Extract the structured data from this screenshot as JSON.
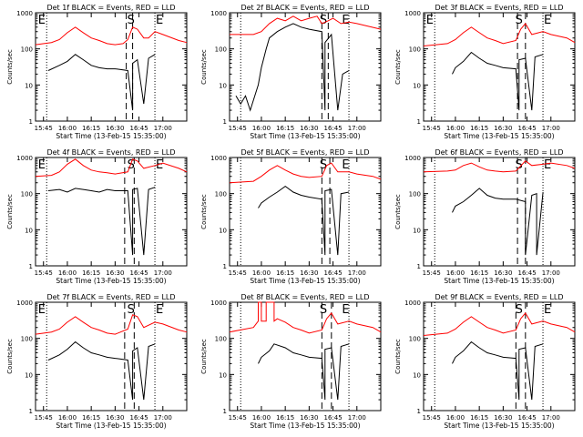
{
  "figure": {
    "shared": {
      "xlabel": "Start Time (13-Feb-15 15:35:00)",
      "ylabel": "Counts/sec",
      "x_tick_labels": [
        "15:45",
        "16:00",
        "16:15",
        "16:30",
        "16:45",
        "17:00"
      ],
      "y_tick_labels": [
        "1",
        "10",
        "100",
        "1000"
      ]
    },
    "colors": {
      "events": "#000000",
      "lld": "#ff0000"
    }
  },
  "chart_data": [
    {
      "title": "Det 1f BLACK = Events, RED = LLD",
      "type": "line",
      "xlim": [
        "15:40",
        "17:15"
      ],
      "ylim": [
        1,
        1000
      ],
      "yscale": "log",
      "marker_labels": [
        "E",
        "S",
        "E"
      ],
      "series": [
        {
          "name": "Events",
          "color": "#000000",
          "x": [
            "15:48",
            "15:55",
            "16:00",
            "16:05",
            "16:10",
            "16:15",
            "16:20",
            "16:25",
            "16:30",
            "16:38",
            "16:41",
            "16:41",
            "16:44",
            "16:48",
            "16:51",
            "16:55"
          ],
          "values": [
            25,
            35,
            45,
            70,
            50,
            35,
            30,
            28,
            28,
            25,
            2,
            40,
            50,
            3,
            55,
            70
          ]
        },
        {
          "name": "LLD",
          "color": "#ff0000",
          "x": [
            "15:40",
            "15:50",
            "15:55",
            "16:00",
            "16:05",
            "16:10",
            "16:15",
            "16:20",
            "16:25",
            "16:30",
            "16:35",
            "16:38",
            "16:41",
            "16:44",
            "16:48",
            "16:51",
            "16:55",
            "17:00",
            "17:10",
            "17:15"
          ],
          "values": [
            130,
            150,
            180,
            280,
            400,
            280,
            200,
            170,
            140,
            130,
            140,
            180,
            400,
            350,
            200,
            200,
            300,
            250,
            170,
            150
          ]
        }
      ]
    },
    {
      "title": "Det 2f BLACK = Events, RED = LLD",
      "type": "line",
      "xlim": [
        "15:40",
        "17:15"
      ],
      "ylim": [
        1,
        1000
      ],
      "yscale": "log",
      "marker_labels": [
        "S",
        "E"
      ],
      "series": [
        {
          "name": "Events",
          "color": "#000000",
          "x": [
            "15:44",
            "15:47",
            "15:50",
            "15:53",
            "15:58",
            "16:00",
            "16:03",
            "16:05",
            "16:10",
            "16:15",
            "16:20",
            "16:25",
            "16:30",
            "16:38",
            "16:40",
            "16:40",
            "16:44",
            "16:48",
            "16:51",
            "16:55"
          ],
          "values": [
            5,
            3,
            5,
            2,
            10,
            30,
            100,
            200,
            300,
            400,
            500,
            400,
            350,
            300,
            2,
            150,
            250,
            2,
            20,
            25
          ]
        },
        {
          "name": "LLD",
          "color": "#ff0000",
          "x": [
            "15:40",
            "15:55",
            "16:00",
            "16:05",
            "16:10",
            "16:15",
            "16:20",
            "16:25",
            "16:30",
            "16:35",
            "16:38",
            "16:42",
            "16:45",
            "16:50",
            "16:55",
            "17:00",
            "17:15"
          ],
          "values": [
            250,
            250,
            300,
            500,
            700,
            600,
            800,
            600,
            700,
            800,
            500,
            600,
            700,
            500,
            550,
            500,
            350
          ]
        }
      ]
    },
    {
      "title": "Det 3f BLACK = Events, RED = LLD",
      "type": "line",
      "xlim": [
        "15:40",
        "17:15"
      ],
      "ylim": [
        1,
        1000
      ],
      "yscale": "log",
      "marker_labels": [
        "E",
        "S",
        "E"
      ],
      "series": [
        {
          "name": "Events",
          "color": "#000000",
          "x": [
            "15:58",
            "16:00",
            "16:05",
            "16:10",
            "16:15",
            "16:20",
            "16:25",
            "16:30",
            "16:38",
            "16:40",
            "16:40",
            "16:44",
            "16:48",
            "16:50",
            "16:55"
          ],
          "values": [
            20,
            30,
            45,
            80,
            55,
            40,
            35,
            30,
            28,
            2,
            50,
            55,
            2,
            60,
            70
          ]
        },
        {
          "name": "LLD",
          "color": "#ff0000",
          "x": [
            "15:40",
            "15:55",
            "16:00",
            "16:05",
            "16:10",
            "16:15",
            "16:20",
            "16:25",
            "16:30",
            "16:38",
            "16:41",
            "16:44",
            "16:48",
            "16:55",
            "17:00",
            "17:10",
            "17:15"
          ],
          "values": [
            120,
            140,
            180,
            280,
            400,
            280,
            200,
            170,
            140,
            170,
            350,
            500,
            250,
            300,
            250,
            200,
            150
          ]
        }
      ]
    },
    {
      "title": "Det 4f BLACK = Events, RED = LLD",
      "type": "line",
      "xlim": [
        "15:40",
        "17:15"
      ],
      "ylim": [
        1,
        1000
      ],
      "yscale": "log",
      "marker_labels": [
        "E",
        "S",
        "E"
      ],
      "series": [
        {
          "name": "Events",
          "color": "#000000",
          "x": [
            "15:48",
            "15:55",
            "16:00",
            "16:05",
            "16:10",
            "16:15",
            "16:20",
            "16:25",
            "16:30",
            "16:38",
            "16:41",
            "16:41",
            "16:44",
            "16:48",
            "16:51",
            "16:55"
          ],
          "values": [
            120,
            130,
            110,
            140,
            130,
            120,
            110,
            130,
            120,
            120,
            2,
            130,
            140,
            2,
            130,
            150
          ]
        },
        {
          "name": "LLD",
          "color": "#ff0000",
          "x": [
            "15:40",
            "15:50",
            "15:55",
            "16:00",
            "16:05",
            "16:10",
            "16:15",
            "16:20",
            "16:25",
            "16:30",
            "16:38",
            "16:41",
            "16:44",
            "16:48",
            "16:55",
            "17:00",
            "17:10",
            "17:15"
          ],
          "values": [
            300,
            320,
            400,
            650,
            900,
            600,
            450,
            400,
            380,
            350,
            400,
            900,
            800,
            500,
            600,
            700,
            500,
            400
          ]
        }
      ]
    },
    {
      "title": "Det 5f BLACK = Events, RED = LLD",
      "type": "line",
      "xlim": [
        "15:40",
        "17:15"
      ],
      "ylim": [
        1,
        1000
      ],
      "yscale": "log",
      "marker_labels": [
        "S",
        "E"
      ],
      "series": [
        {
          "name": "Events",
          "color": "#000000",
          "x": [
            "15:58",
            "16:00",
            "16:05",
            "16:10",
            "16:15",
            "16:20",
            "16:25",
            "16:30",
            "16:38",
            "16:40",
            "16:40",
            "16:44",
            "16:48",
            "16:50",
            "16:55"
          ],
          "values": [
            40,
            55,
            80,
            110,
            160,
            110,
            90,
            80,
            70,
            2,
            120,
            130,
            2,
            100,
            110
          ]
        },
        {
          "name": "LLD",
          "color": "#ff0000",
          "x": [
            "15:40",
            "15:55",
            "16:00",
            "16:05",
            "16:10",
            "16:15",
            "16:20",
            "16:25",
            "16:30",
            "16:38",
            "16:41",
            "16:44",
            "16:48",
            "16:55",
            "17:00",
            "17:10",
            "17:15"
          ],
          "values": [
            200,
            220,
            300,
            450,
            600,
            450,
            350,
            300,
            280,
            300,
            600,
            700,
            400,
            400,
            350,
            300,
            250
          ]
        }
      ]
    },
    {
      "title": "Det 6f BLACK = Events, RED = LLD",
      "type": "line",
      "xlim": [
        "15:40",
        "17:15"
      ],
      "ylim": [
        1,
        1000
      ],
      "yscale": "log",
      "marker_labels": [
        "S",
        "E"
      ],
      "series": [
        {
          "name": "Events",
          "color": "#000000",
          "x": [
            "15:58",
            "16:00",
            "16:05",
            "16:10",
            "16:15",
            "16:20",
            "16:25",
            "16:30",
            "16:38",
            "16:44",
            "16:44",
            "16:48",
            "16:51",
            "16:51",
            "16:55"
          ],
          "values": [
            30,
            45,
            60,
            90,
            140,
            90,
            75,
            70,
            70,
            60,
            2,
            90,
            100,
            2,
            110
          ]
        },
        {
          "name": "LLD",
          "color": "#ff0000",
          "x": [
            "15:40",
            "15:55",
            "16:00",
            "16:05",
            "16:10",
            "16:15",
            "16:20",
            "16:25",
            "16:30",
            "16:38",
            "16:44",
            "16:48",
            "16:55",
            "17:00",
            "17:10",
            "17:15"
          ],
          "values": [
            400,
            420,
            450,
            600,
            700,
            550,
            450,
            420,
            400,
            420,
            800,
            600,
            650,
            700,
            600,
            500
          ]
        }
      ]
    },
    {
      "title": "Det 7f BLACK = Events, RED = LLD",
      "type": "line",
      "xlim": [
        "15:40",
        "17:15"
      ],
      "ylim": [
        1,
        1000
      ],
      "yscale": "log",
      "marker_labels": [
        "E",
        "S",
        "E"
      ],
      "series": [
        {
          "name": "Events",
          "color": "#000000",
          "x": [
            "15:48",
            "15:55",
            "16:00",
            "16:05",
            "16:10",
            "16:15",
            "16:20",
            "16:25",
            "16:30",
            "16:38",
            "16:41",
            "16:41",
            "16:44",
            "16:48",
            "16:51",
            "16:55"
          ],
          "values": [
            25,
            35,
            50,
            80,
            55,
            40,
            35,
            30,
            28,
            25,
            2,
            45,
            55,
            2,
            60,
            70
          ]
        },
        {
          "name": "LLD",
          "color": "#ff0000",
          "x": [
            "15:40",
            "15:50",
            "15:55",
            "16:00",
            "16:05",
            "16:10",
            "16:15",
            "16:20",
            "16:25",
            "16:30",
            "16:38",
            "16:41",
            "16:44",
            "16:48",
            "16:55",
            "17:00",
            "17:10",
            "17:15"
          ],
          "values": [
            130,
            150,
            180,
            280,
            400,
            280,
            200,
            170,
            140,
            130,
            180,
            450,
            400,
            200,
            280,
            250,
            170,
            150
          ]
        }
      ]
    },
    {
      "title": "Det 8f BLACK = Events, RED = LLD",
      "type": "line",
      "xlim": [
        "15:40",
        "17:15"
      ],
      "ylim": [
        1,
        1000
      ],
      "yscale": "log",
      "marker_labels": [
        "S",
        "E"
      ],
      "series": [
        {
          "name": "Events",
          "color": "#000000",
          "x": [
            "15:58",
            "16:00",
            "16:05",
            "16:08",
            "16:15",
            "16:20",
            "16:25",
            "16:30",
            "16:38",
            "16:40",
            "16:40",
            "16:44",
            "16:48",
            "16:50",
            "16:55"
          ],
          "values": [
            20,
            30,
            45,
            70,
            55,
            40,
            35,
            30,
            28,
            2,
            50,
            55,
            2,
            60,
            70
          ]
        },
        {
          "name": "LLD",
          "color": "#ff0000",
          "x": [
            "15:40",
            "15:55",
            "15:58",
            "15:58",
            "16:00",
            "16:00",
            "16:03",
            "16:03",
            "16:08",
            "16:08",
            "16:10",
            "16:15",
            "16:20",
            "16:25",
            "16:30",
            "16:38",
            "16:41",
            "16:44",
            "16:48",
            "16:55",
            "17:00",
            "17:10",
            "17:15"
          ],
          "values": [
            150,
            200,
            300,
            1000,
            1000,
            300,
            300,
            1000,
            1000,
            300,
            350,
            280,
            200,
            170,
            140,
            170,
            350,
            500,
            250,
            300,
            250,
            200,
            150
          ]
        }
      ]
    },
    {
      "title": "Det 9f BLACK = Events, RED = LLD",
      "type": "line",
      "xlim": [
        "15:40",
        "17:15"
      ],
      "ylim": [
        1,
        1000
      ],
      "yscale": "log",
      "marker_labels": [
        "S",
        "E"
      ],
      "series": [
        {
          "name": "Events",
          "color": "#000000",
          "x": [
            "15:58",
            "16:00",
            "16:05",
            "16:10",
            "16:15",
            "16:20",
            "16:25",
            "16:30",
            "16:38",
            "16:40",
            "16:40",
            "16:44",
            "16:48",
            "16:50",
            "16:55"
          ],
          "values": [
            20,
            30,
            45,
            80,
            55,
            40,
            35,
            30,
            28,
            2,
            50,
            55,
            2,
            60,
            70
          ]
        },
        {
          "name": "LLD",
          "color": "#ff0000",
          "x": [
            "15:40",
            "15:55",
            "16:00",
            "16:05",
            "16:10",
            "16:15",
            "16:20",
            "16:25",
            "16:30",
            "16:38",
            "16:41",
            "16:44",
            "16:48",
            "16:55",
            "17:00",
            "17:10",
            "17:15"
          ],
          "values": [
            120,
            140,
            180,
            280,
            400,
            280,
            200,
            170,
            140,
            170,
            350,
            500,
            250,
            300,
            250,
            200,
            150
          ]
        }
      ]
    }
  ]
}
